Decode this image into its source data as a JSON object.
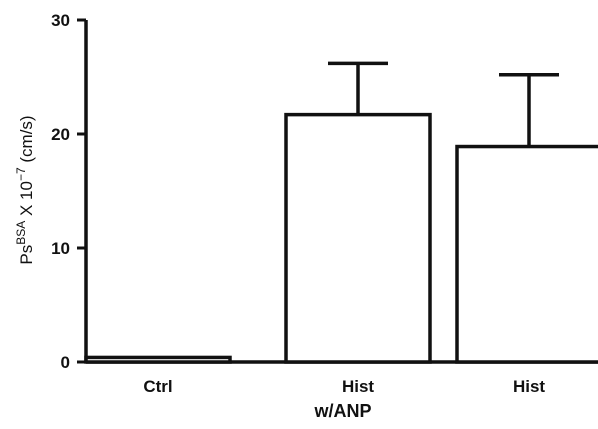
{
  "chart_data": {
    "type": "bar",
    "categories": [
      "Ctrl",
      "Hist",
      "Hist"
    ],
    "values": [
      0.4,
      21.7,
      18.9
    ],
    "errors": [
      0.0,
      4.5,
      6.3
    ],
    "ylim": [
      0,
      30
    ],
    "yticks": [
      0,
      10,
      20,
      30
    ],
    "ylabel": {
      "base": "Ps",
      "sup1": "BSA",
      "mid": " X 10",
      "sup2": "−7",
      "unit": " (cm/s)"
    },
    "group_label": "w/ANP",
    "bar_fill": "#ffffff",
    "bar_stroke": "#111111"
  }
}
